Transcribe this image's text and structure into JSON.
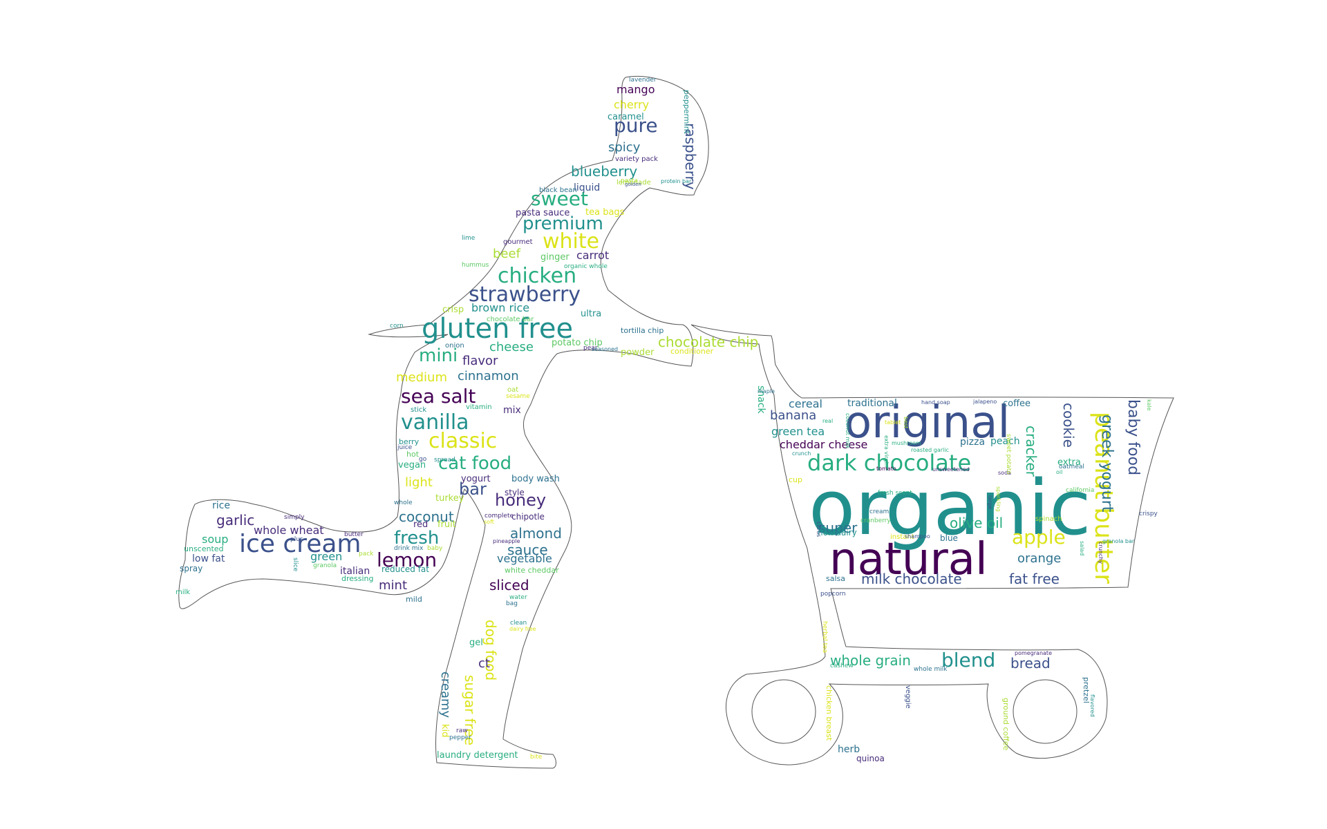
{
  "colors": {
    "outline": "#555555",
    "palette": [
      "#440154",
      "#472c7a",
      "#3b518b",
      "#2c718e",
      "#21908d",
      "#27ad81",
      "#5cc863",
      "#aadc32",
      "#dbe318"
    ]
  },
  "words": [
    {
      "text": "organic",
      "c": 4
    },
    {
      "text": "natural",
      "c": 0
    },
    {
      "text": "original",
      "c": 2
    },
    {
      "text": "gluten free",
      "c": 4
    },
    {
      "text": "dark chocolate",
      "c": 5
    },
    {
      "text": "ice cream",
      "c": 2
    },
    {
      "text": "peanut butter",
      "c": 8
    },
    {
      "text": "strawberry",
      "c": 2
    },
    {
      "text": "chicken",
      "c": 5
    },
    {
      "text": "vanilla",
      "c": 4
    },
    {
      "text": "classic",
      "c": 8
    },
    {
      "text": "sea salt",
      "c": 0
    },
    {
      "text": "lemon",
      "c": 0
    },
    {
      "text": "white",
      "c": 8
    },
    {
      "text": "sweet",
      "c": 5
    },
    {
      "text": "premium",
      "c": 4
    },
    {
      "text": "pure",
      "c": 2
    },
    {
      "text": "cat food",
      "c": 5
    },
    {
      "text": "fresh",
      "c": 4
    },
    {
      "text": "honey",
      "c": 1
    },
    {
      "text": "bar",
      "c": 2
    },
    {
      "text": "mini",
      "c": 5
    },
    {
      "text": "apple",
      "c": 8
    },
    {
      "text": "blend",
      "c": 4
    },
    {
      "text": "chocolate chip",
      "c": 7
    },
    {
      "text": "greek yogurt",
      "c": 3
    },
    {
      "text": "baby food",
      "c": 2
    },
    {
      "text": "cookie",
      "c": 2
    },
    {
      "text": "cracker",
      "c": 5
    },
    {
      "text": "olive oil",
      "c": 5
    },
    {
      "text": "milk chocolate",
      "c": 2
    },
    {
      "text": "fat free",
      "c": 2
    },
    {
      "text": "orange",
      "c": 3
    },
    {
      "text": "super",
      "c": 3
    },
    {
      "text": "whole grain",
      "c": 5
    },
    {
      "text": "bread",
      "c": 2
    },
    {
      "text": "raspberry",
      "c": 2
    },
    {
      "text": "dog food",
      "c": 8
    },
    {
      "text": "sugar free",
      "c": 8
    },
    {
      "text": "creamy",
      "c": 3
    },
    {
      "text": "almond",
      "c": 3
    },
    {
      "text": "sauce",
      "c": 3
    },
    {
      "text": "coconut",
      "c": 3
    },
    {
      "text": "garlic",
      "c": 1
    },
    {
      "text": "sliced",
      "c": 0
    },
    {
      "text": "blueberry",
      "c": 4
    },
    {
      "text": "spicy",
      "c": 3
    },
    {
      "text": "banana",
      "c": 2
    },
    {
      "text": "cheese",
      "c": 5
    },
    {
      "text": "flavor",
      "c": 1
    },
    {
      "text": "cinnamon",
      "c": 3
    },
    {
      "text": "medium",
      "c": 8
    },
    {
      "text": "light",
      "c": 8
    },
    {
      "text": "brown rice",
      "c": 4
    },
    {
      "text": "beef",
      "c": 7
    },
    {
      "text": "carrot",
      "c": 1
    },
    {
      "text": "mint",
      "c": 1
    },
    {
      "text": "vegetable",
      "c": 3
    },
    {
      "text": "whole wheat",
      "c": 1
    },
    {
      "text": "cheddar cheese",
      "c": 0
    },
    {
      "text": "cereal",
      "c": 3
    },
    {
      "text": "green tea",
      "c": 4
    },
    {
      "text": "traditional",
      "c": 3
    },
    {
      "text": "pizza",
      "c": 3
    },
    {
      "text": "peach",
      "c": 4
    },
    {
      "text": "coffee",
      "c": 3
    },
    {
      "text": "extra",
      "c": 5
    },
    {
      "text": "mango",
      "c": 0
    },
    {
      "text": "cherry",
      "c": 8
    },
    {
      "text": "caramel",
      "c": 4
    },
    {
      "text": "soup",
      "c": 5
    },
    {
      "text": "green",
      "c": 4
    },
    {
      "text": "low fat",
      "c": 2
    },
    {
      "text": "rice",
      "c": 3
    },
    {
      "text": "spray",
      "c": 3
    },
    {
      "text": "italian",
      "c": 1
    },
    {
      "text": "dressing",
      "c": 5
    },
    {
      "text": "reduced fat",
      "c": 4
    },
    {
      "text": "mild",
      "c": 3
    },
    {
      "text": "milk",
      "c": 5
    },
    {
      "text": "unscented",
      "c": 5
    },
    {
      "text": "simply",
      "c": 1
    },
    {
      "text": "butter",
      "c": 1
    },
    {
      "text": "plus",
      "c": 2
    },
    {
      "text": "slice",
      "c": 4
    },
    {
      "text": "granola",
      "c": 6
    },
    {
      "text": "pack",
      "c": 7
    },
    {
      "text": "drink mix",
      "c": 3
    },
    {
      "text": "baby",
      "c": 7
    },
    {
      "text": "red",
      "c": 1
    },
    {
      "text": "fruit",
      "c": 7
    },
    {
      "text": "turkey",
      "c": 7
    },
    {
      "text": "whole",
      "c": 3
    },
    {
      "text": "vegan",
      "c": 5
    },
    {
      "text": "hot",
      "c": 6
    },
    {
      "text": "go",
      "c": 2
    },
    {
      "text": "spread",
      "c": 4
    },
    {
      "text": "berry",
      "c": 4
    },
    {
      "text": "juice",
      "c": 2
    },
    {
      "text": "stick",
      "c": 4
    },
    {
      "text": "vitamin",
      "c": 5
    },
    {
      "text": "mix",
      "c": 1
    },
    {
      "text": "oat",
      "c": 7
    },
    {
      "text": "sesame",
      "c": 8
    },
    {
      "text": "onion",
      "c": 3
    },
    {
      "text": "corn",
      "c": 4
    },
    {
      "text": "lime",
      "c": 4
    },
    {
      "text": "crisp",
      "c": 7
    },
    {
      "text": "chocolate bar",
      "c": 6
    },
    {
      "text": "ultra",
      "c": 4
    },
    {
      "text": "tortilla chip",
      "c": 3
    },
    {
      "text": "potato chip",
      "c": 6
    },
    {
      "text": "pear",
      "c": 1
    },
    {
      "text": "seasoned",
      "c": 3
    },
    {
      "text": "powder",
      "c": 7
    },
    {
      "text": "conditioner",
      "c": 8
    },
    {
      "text": "hummus",
      "c": 6
    },
    {
      "text": "organic whole",
      "c": 5
    },
    {
      "text": "ginger",
      "c": 6
    },
    {
      "text": "gourmet",
      "c": 1
    },
    {
      "text": "pasta sauce",
      "c": 1
    },
    {
      "text": "tea bags",
      "c": 8
    },
    {
      "text": "liquid",
      "c": 2
    },
    {
      "text": "black bean",
      "c": 3
    },
    {
      "text": "pasta",
      "c": 7
    },
    {
      "text": "lemonade",
      "c": 7
    },
    {
      "text": "golden",
      "c": 2
    },
    {
      "text": "protein bar",
      "c": 4
    },
    {
      "text": "variety pack",
      "c": 1
    },
    {
      "text": "peppermint",
      "c": 4
    },
    {
      "text": "lavender",
      "c": 3
    },
    {
      "text": "yogurt",
      "c": 1
    },
    {
      "text": "body wash",
      "c": 3
    },
    {
      "text": "style",
      "c": 1
    },
    {
      "text": "chipotle",
      "c": 1
    },
    {
      "text": "complete",
      "c": 1
    },
    {
      "text": "soft",
      "c": 8
    },
    {
      "text": "pineapple",
      "c": 1
    },
    {
      "text": "white cheddar",
      "c": 6
    },
    {
      "text": "water",
      "c": 5
    },
    {
      "text": "bag",
      "c": 3
    },
    {
      "text": "clean",
      "c": 4
    },
    {
      "text": "dairy free",
      "c": 8
    },
    {
      "text": "gel",
      "c": 5
    },
    {
      "text": "ct",
      "c": 1
    },
    {
      "text": "raw",
      "c": 1
    },
    {
      "text": "pepper",
      "c": 3
    },
    {
      "text": "kid",
      "c": 8
    },
    {
      "text": "laundry detergent",
      "c": 5
    },
    {
      "text": "bite",
      "c": 8
    },
    {
      "text": "snack",
      "c": 5
    },
    {
      "text": "maple",
      "c": 3
    },
    {
      "text": "hand soap",
      "c": 2
    },
    {
      "text": "jalapeno",
      "c": 2
    },
    {
      "text": "real",
      "c": 5
    },
    {
      "text": "tablet",
      "c": 8
    },
    {
      "text": "best",
      "c": 7
    },
    {
      "text": "crunch",
      "c": 4
    },
    {
      "text": "mushroom",
      "c": 5
    },
    {
      "text": "roasted garlic",
      "c": 5
    },
    {
      "text": "tomato",
      "c": 0
    },
    {
      "text": "unsweetened",
      "c": 1
    },
    {
      "text": "soda",
      "c": 1
    },
    {
      "text": "oil",
      "c": 5
    },
    {
      "text": "oatmeal",
      "c": 3
    },
    {
      "text": "cup",
      "c": 8
    },
    {
      "text": "coconut milk",
      "c": 5
    },
    {
      "text": "extra virgin",
      "c": 5
    },
    {
      "text": "large",
      "c": 2
    },
    {
      "text": "sparkling",
      "c": 7
    },
    {
      "text": "california",
      "c": 6
    },
    {
      "text": "sweet potato",
      "c": 7
    },
    {
      "text": "kale",
      "c": 6
    },
    {
      "text": "crispy",
      "c": 2
    },
    {
      "text": "fresh scent",
      "c": 5
    },
    {
      "text": "cream",
      "c": 3
    },
    {
      "text": "cranberry",
      "c": 6
    },
    {
      "text": "spinach",
      "c": 7
    },
    {
      "text": "non dairy",
      "c": 4
    },
    {
      "text": "citrus",
      "c": 2
    },
    {
      "text": "instant",
      "c": 8
    },
    {
      "text": "shampoo",
      "c": 2
    },
    {
      "text": "blue",
      "c": 3
    },
    {
      "text": "salad",
      "c": 5
    },
    {
      "text": "granola bar",
      "c": 4
    },
    {
      "text": "crunchy",
      "c": 1
    },
    {
      "text": "salsa",
      "c": 3
    },
    {
      "text": "popcorn",
      "c": 2
    },
    {
      "text": "herbal tea",
      "c": 8
    },
    {
      "text": "cashew",
      "c": 5
    },
    {
      "text": "whole milk",
      "c": 3
    },
    {
      "text": "pomegranate",
      "c": 1
    },
    {
      "text": "chicken breast",
      "c": 8
    },
    {
      "text": "veggie",
      "c": 2
    },
    {
      "text": "ground coffee",
      "c": 7
    },
    {
      "text": "pretzel",
      "c": 3
    },
    {
      "text": "flavored",
      "c": 4
    },
    {
      "text": "herb",
      "c": 3
    },
    {
      "text": "quinoa",
      "c": 1
    }
  ]
}
